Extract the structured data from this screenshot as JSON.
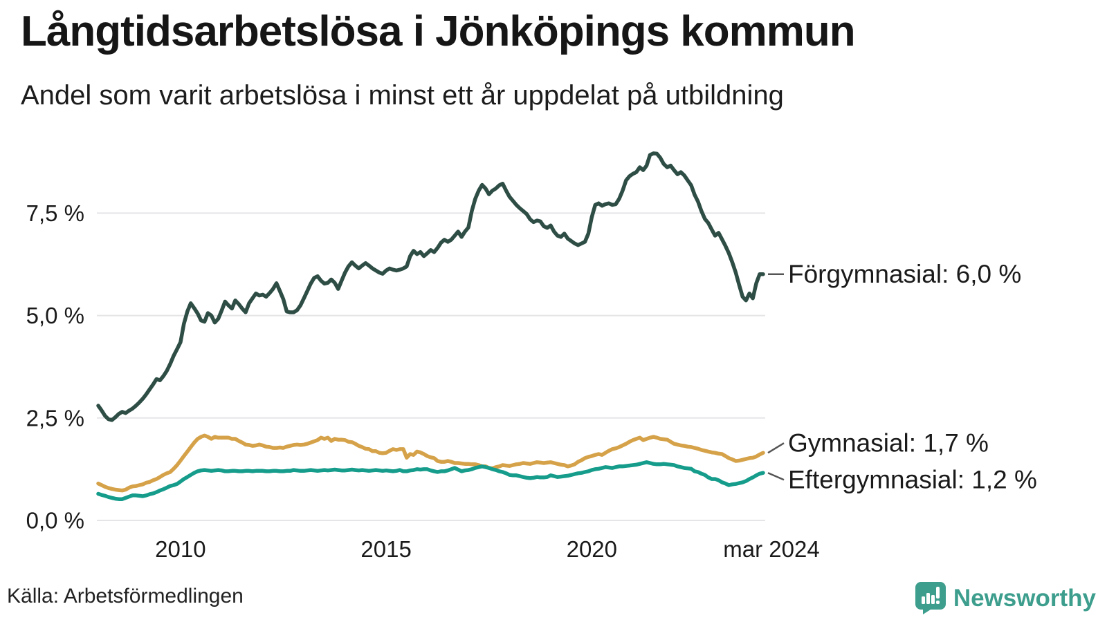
{
  "header": {
    "title": "Långtidsarbetslösa i Jönköpings kommun",
    "subtitle": "Andel som varit arbetslösa i minst ett år uppdelat på utbildning"
  },
  "footer": {
    "source": "Källa: Arbetsförmedlingen",
    "brand": "Newsworthy"
  },
  "colors": {
    "grid": "#e5e5e8",
    "text": "#1a1a1a",
    "connector": "#555555",
    "brand_teal": "#3d9e8d",
    "forgymnasial": "#2e4e45",
    "gymnasial": "#d5a249",
    "eftergymnasial": "#159c8b"
  },
  "chart_data": {
    "type": "line",
    "title": "Långtidsarbetslösa i Jönköpings kommun",
    "subtitle": "Andel som varit arbetslösa i minst ett år uppdelat på utbildning",
    "xlabel": "",
    "ylabel": "",
    "grid": true,
    "legend_position": "right-end-labels",
    "x_range": {
      "start": "2008-01",
      "end": "2024-03",
      "interval": "monthly",
      "n_points": 195
    },
    "x_tick_labels": [
      {
        "label": "2010",
        "month_index": 24
      },
      {
        "label": "2015",
        "month_index": 84
      },
      {
        "label": "2020",
        "month_index": 144
      },
      {
        "label": "mar 2024",
        "month_index": 194
      }
    ],
    "y_ticks": [
      0,
      2.5,
      5,
      7.5
    ],
    "y_tick_labels": [
      "0,0 %",
      "2,5 %",
      "5,0 %",
      "7,5 %"
    ],
    "ylim": [
      0,
      9.4
    ],
    "unit": "%",
    "series": [
      {
        "name": "Förgymnasial",
        "end_label": "Förgymnasial: 6,0 %",
        "end_value_display": "6,0 %",
        "color": "#2e4e45",
        "values": [
          2.8,
          2.68,
          2.55,
          2.47,
          2.45,
          2.52,
          2.6,
          2.65,
          2.62,
          2.68,
          2.73,
          2.8,
          2.88,
          2.97,
          3.08,
          3.2,
          3.32,
          3.45,
          3.42,
          3.52,
          3.65,
          3.82,
          4.02,
          4.18,
          4.35,
          4.8,
          5.1,
          5.3,
          5.18,
          5.05,
          4.88,
          4.85,
          5.06,
          5.0,
          4.83,
          4.92,
          5.12,
          5.34,
          5.25,
          5.17,
          5.37,
          5.28,
          5.17,
          5.08,
          5.3,
          5.42,
          5.54,
          5.49,
          5.51,
          5.46,
          5.55,
          5.65,
          5.79,
          5.6,
          5.4,
          5.1,
          5.08,
          5.08,
          5.13,
          5.25,
          5.42,
          5.6,
          5.78,
          5.92,
          5.96,
          5.85,
          5.78,
          5.8,
          5.88,
          5.8,
          5.65,
          5.85,
          6.05,
          6.2,
          6.3,
          6.22,
          6.15,
          6.22,
          6.28,
          6.22,
          6.15,
          6.1,
          6.05,
          6.02,
          6.1,
          6.15,
          6.12,
          6.1,
          6.12,
          6.15,
          6.2,
          6.45,
          6.58,
          6.5,
          6.55,
          6.45,
          6.52,
          6.6,
          6.55,
          6.65,
          6.78,
          6.85,
          6.8,
          6.85,
          6.95,
          7.05,
          6.92,
          7.05,
          7.15,
          7.55,
          7.85,
          8.05,
          8.19,
          8.1,
          7.96,
          8.05,
          8.1,
          8.18,
          8.22,
          8.05,
          7.9,
          7.8,
          7.7,
          7.62,
          7.55,
          7.48,
          7.35,
          7.28,
          7.32,
          7.3,
          7.18,
          7.14,
          7.2,
          7.05,
          6.95,
          6.92,
          7.0,
          6.88,
          6.82,
          6.76,
          6.72,
          6.76,
          6.8,
          7.0,
          7.4,
          7.7,
          7.74,
          7.68,
          7.72,
          7.74,
          7.7,
          7.72,
          7.85,
          8.05,
          8.3,
          8.4,
          8.46,
          8.5,
          8.62,
          8.55,
          8.66,
          8.92,
          8.96,
          8.95,
          8.85,
          8.7,
          8.62,
          8.66,
          8.55,
          8.45,
          8.5,
          8.42,
          8.3,
          8.18,
          7.95,
          7.78,
          7.55,
          7.36,
          7.26,
          7.1,
          6.95,
          7.02,
          6.86,
          6.7,
          6.52,
          6.3,
          6.05,
          5.75,
          5.46,
          5.37,
          5.54,
          5.42,
          5.79,
          6.01,
          6.01
        ]
      },
      {
        "name": "Gymnasial",
        "end_label": "Gymnasial: 1,7 %",
        "end_value_display": "1,7 %",
        "color": "#d5a249",
        "values": [
          0.9,
          0.86,
          0.82,
          0.79,
          0.77,
          0.75,
          0.74,
          0.73,
          0.75,
          0.8,
          0.83,
          0.84,
          0.86,
          0.88,
          0.92,
          0.94,
          0.98,
          1.01,
          1.06,
          1.11,
          1.15,
          1.18,
          1.26,
          1.35,
          1.46,
          1.57,
          1.68,
          1.79,
          1.9,
          1.99,
          2.04,
          2.07,
          2.04,
          1.99,
          2.04,
          2.02,
          2.02,
          2.02,
          2.02,
          1.99,
          1.99,
          1.94,
          1.9,
          1.85,
          1.84,
          1.82,
          1.83,
          1.85,
          1.83,
          1.8,
          1.79,
          1.77,
          1.77,
          1.78,
          1.77,
          1.8,
          1.82,
          1.84,
          1.85,
          1.84,
          1.85,
          1.87,
          1.9,
          1.93,
          1.96,
          2.02,
          1.99,
          2.02,
          1.94,
          1.99,
          1.97,
          1.97,
          1.96,
          1.92,
          1.91,
          1.87,
          1.82,
          1.79,
          1.75,
          1.74,
          1.69,
          1.69,
          1.65,
          1.64,
          1.65,
          1.7,
          1.74,
          1.72,
          1.74,
          1.74,
          1.53,
          1.62,
          1.6,
          1.68,
          1.66,
          1.62,
          1.57,
          1.54,
          1.52,
          1.45,
          1.43,
          1.43,
          1.45,
          1.43,
          1.4,
          1.4,
          1.39,
          1.38,
          1.38,
          1.37,
          1.37,
          1.35,
          1.32,
          1.32,
          1.28,
          1.27,
          1.3,
          1.32,
          1.35,
          1.34,
          1.33,
          1.35,
          1.37,
          1.38,
          1.4,
          1.39,
          1.38,
          1.4,
          1.42,
          1.41,
          1.4,
          1.41,
          1.42,
          1.4,
          1.38,
          1.36,
          1.35,
          1.32,
          1.34,
          1.37,
          1.43,
          1.47,
          1.52,
          1.55,
          1.57,
          1.6,
          1.62,
          1.6,
          1.65,
          1.7,
          1.74,
          1.76,
          1.79,
          1.83,
          1.87,
          1.92,
          1.96,
          1.99,
          2.02,
          1.96,
          1.99,
          2.02,
          2.04,
          2.02,
          1.99,
          1.98,
          1.97,
          1.92,
          1.87,
          1.85,
          1.83,
          1.82,
          1.8,
          1.79,
          1.77,
          1.75,
          1.72,
          1.7,
          1.68,
          1.66,
          1.65,
          1.63,
          1.62,
          1.57,
          1.52,
          1.49,
          1.45,
          1.46,
          1.48,
          1.5,
          1.52,
          1.53,
          1.56,
          1.61,
          1.65
        ]
      },
      {
        "name": "Eftergymnasial",
        "end_label": "Eftergymnasial: 1,2 %",
        "end_value_display": "1,2 %",
        "color": "#159c8b",
        "values": [
          0.65,
          0.62,
          0.6,
          0.57,
          0.55,
          0.53,
          0.52,
          0.52,
          0.55,
          0.58,
          0.61,
          0.61,
          0.6,
          0.59,
          0.61,
          0.64,
          0.66,
          0.69,
          0.73,
          0.76,
          0.8,
          0.84,
          0.86,
          0.89,
          0.95,
          1.01,
          1.06,
          1.11,
          1.16,
          1.2,
          1.22,
          1.23,
          1.22,
          1.21,
          1.22,
          1.23,
          1.22,
          1.2,
          1.2,
          1.21,
          1.21,
          1.2,
          1.2,
          1.21,
          1.21,
          1.2,
          1.21,
          1.21,
          1.21,
          1.2,
          1.2,
          1.21,
          1.21,
          1.2,
          1.2,
          1.21,
          1.21,
          1.23,
          1.22,
          1.21,
          1.21,
          1.22,
          1.23,
          1.22,
          1.21,
          1.22,
          1.23,
          1.22,
          1.23,
          1.24,
          1.23,
          1.22,
          1.22,
          1.23,
          1.24,
          1.23,
          1.22,
          1.23,
          1.22,
          1.21,
          1.22,
          1.23,
          1.22,
          1.21,
          1.22,
          1.21,
          1.2,
          1.21,
          1.23,
          1.2,
          1.2,
          1.22,
          1.23,
          1.25,
          1.24,
          1.25,
          1.25,
          1.22,
          1.2,
          1.18,
          1.2,
          1.2,
          1.22,
          1.25,
          1.28,
          1.24,
          1.2,
          1.22,
          1.23,
          1.25,
          1.28,
          1.3,
          1.32,
          1.3,
          1.28,
          1.25,
          1.23,
          1.2,
          1.18,
          1.15,
          1.11,
          1.1,
          1.1,
          1.08,
          1.06,
          1.04,
          1.03,
          1.04,
          1.06,
          1.05,
          1.05,
          1.06,
          1.1,
          1.08,
          1.06,
          1.07,
          1.08,
          1.09,
          1.11,
          1.13,
          1.15,
          1.16,
          1.18,
          1.2,
          1.23,
          1.25,
          1.26,
          1.28,
          1.3,
          1.29,
          1.28,
          1.3,
          1.32,
          1.32,
          1.33,
          1.34,
          1.35,
          1.36,
          1.38,
          1.4,
          1.42,
          1.4,
          1.38,
          1.37,
          1.37,
          1.38,
          1.37,
          1.36,
          1.35,
          1.32,
          1.3,
          1.28,
          1.27,
          1.26,
          1.2,
          1.18,
          1.14,
          1.11,
          1.05,
          1.01,
          1.01,
          0.98,
          0.93,
          0.9,
          0.86,
          0.88,
          0.89,
          0.91,
          0.93,
          0.96,
          1.01,
          1.05,
          1.1,
          1.14,
          1.16
        ]
      }
    ]
  }
}
